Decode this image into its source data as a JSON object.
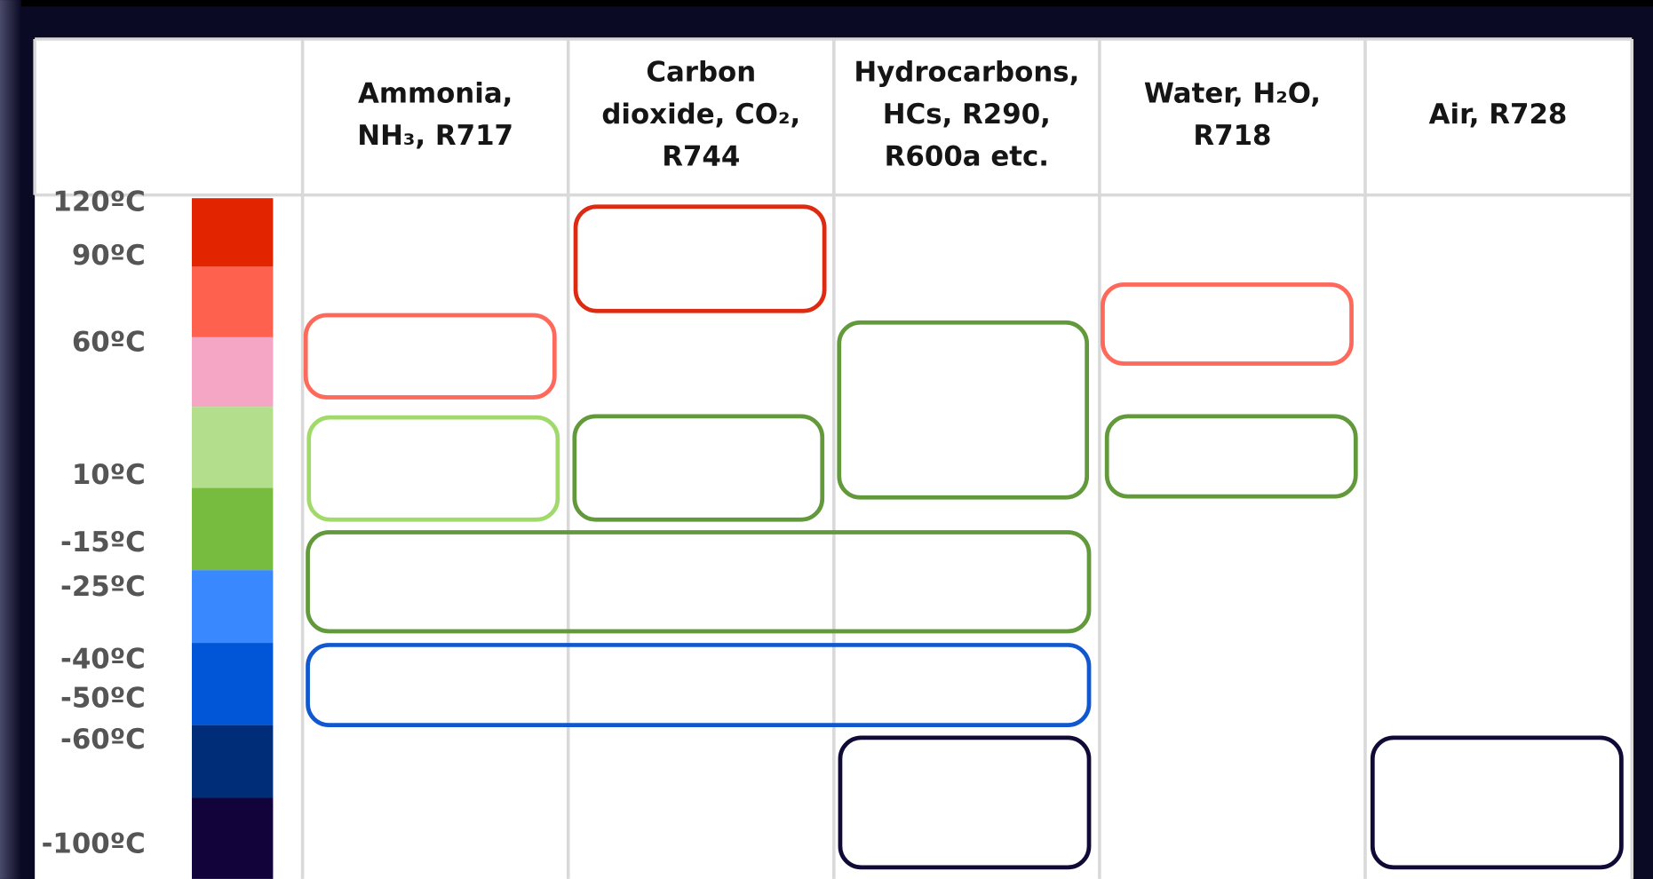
{
  "headers": [
    [
      "Ammonia,",
      "NH₃, R717"
    ],
    [
      "Carbon",
      "dioxide, CO₂,",
      "R744"
    ],
    [
      "Hydrocarbons,",
      "HCs, R290,",
      "R600a etc."
    ],
    [
      "Water, H₂O,",
      "R718"
    ],
    [
      "Air, R728"
    ]
  ],
  "temperatures": [
    "120ºC",
    "90ºC",
    "60ºC",
    "10ºC",
    "-15ºC",
    "-25ºC",
    "-40ºC",
    "-50ºC",
    "-60ºC",
    "-100ºC"
  ]
}
